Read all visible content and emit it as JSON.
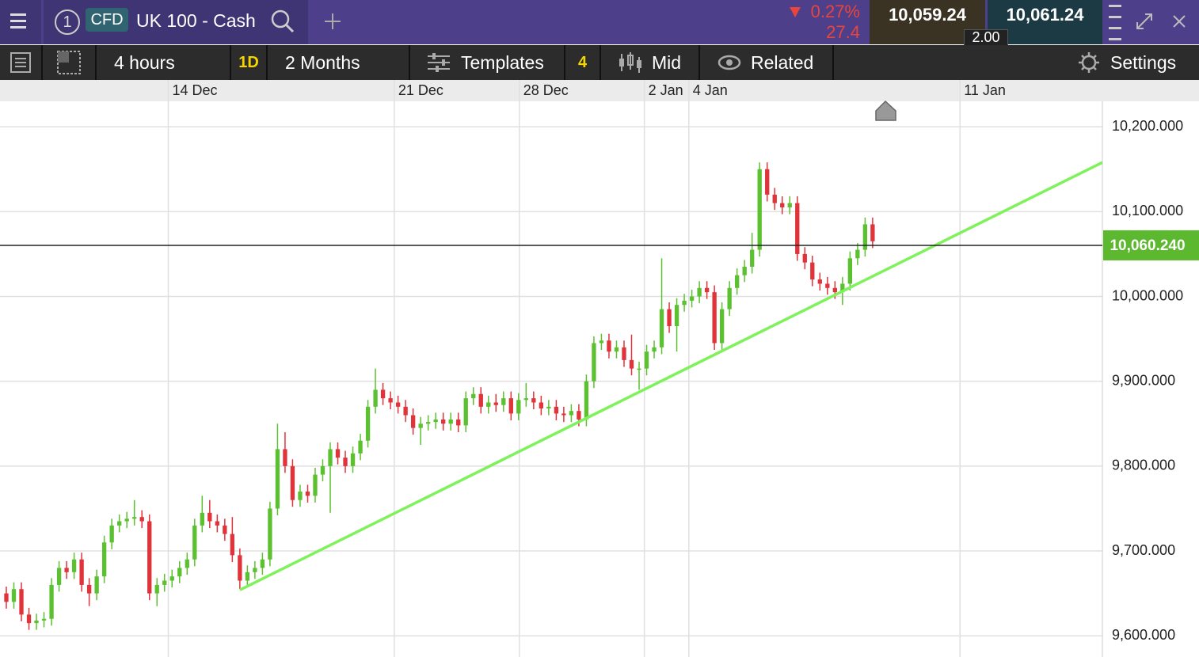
{
  "header": {
    "instrument_number": "1",
    "badge": "CFD",
    "instrument": "UK 100 - Cash",
    "change_percent": "0.27%",
    "change_points": "27.4",
    "sell_price": "10,059.24",
    "buy_price": "10,061.24",
    "spread": "2.00"
  },
  "toolbar": {
    "interval": "4 hours",
    "range_badge": "1D",
    "range": "2 Months",
    "templates": "Templates",
    "templates_count": "4",
    "price_type": "Mid",
    "related": "Related",
    "settings": "Settings"
  },
  "chart_data": {
    "type": "candlestick",
    "grid": true,
    "up_color": "#5cc130",
    "down_color": "#e0333a",
    "xlim": [
      -0.84,
      145.5
    ],
    "xticks": [
      {
        "value": 21.5,
        "label": "14 Dec"
      },
      {
        "value": 51.5,
        "label": "21 Dec"
      },
      {
        "value": 68.1,
        "label": "28 Dec"
      },
      {
        "value": 84.7,
        "label": "2 Jan"
      },
      {
        "value": 90.6,
        "label": "4 Jan"
      },
      {
        "value": 126.6,
        "label": "11 Jan"
      }
    ],
    "ylim": [
      9575,
      10230
    ],
    "yticks": [
      {
        "value": 10200,
        "label": "10,200.000"
      },
      {
        "value": 10100,
        "label": "10,100.000"
      },
      {
        "value": 10000,
        "label": "10,000.000"
      },
      {
        "value": 9900,
        "label": "9,900.000"
      },
      {
        "value": 9800,
        "label": "9,800.000"
      },
      {
        "value": 9700,
        "label": "9,700.000"
      },
      {
        "value": 9600,
        "label": "9,600.000"
      }
    ],
    "current_price": {
      "value": 10060.24,
      "label": "10,060.240",
      "color": "#5cb82e"
    },
    "trendline": {
      "x": [
        31,
        145.5
      ],
      "y": [
        9654,
        10158
      ],
      "color": "#7ef25a"
    },
    "open": [
      9650,
      9640,
      9655,
      9625,
      9615,
      9618,
      9620,
      9660,
      9680,
      9675,
      9690,
      9660,
      9650,
      9670,
      9710,
      9730,
      9735,
      9738,
      9740,
      9735,
      9650,
      9660,
      9665,
      9670,
      9680,
      9690,
      9730,
      9745,
      9735,
      9730,
      9720,
      9695,
      9665,
      9675,
      9680,
      9690,
      9750,
      9820,
      9800,
      9760,
      9770,
      9765,
      9790,
      9800,
      9820,
      9810,
      9800,
      9815,
      9830,
      9870,
      9890,
      9880,
      9875,
      9870,
      9860,
      9845,
      9850,
      9852,
      9855,
      9850,
      9855,
      9848,
      9880,
      9885,
      9870,
      9875,
      9872,
      9880,
      9862,
      9878,
      9880,
      9875,
      9868,
      9870,
      9862,
      9860,
      9865,
      9855,
      9900,
      9945,
      9948,
      9935,
      9940,
      9925,
      9915,
      9915,
      9935,
      9940,
      9985,
      9965,
      9990,
      9995,
      10000,
      10010,
      10005,
      9945,
      9985,
      10010,
      10025,
      10035,
      10055,
      10150,
      10120,
      10110,
      10105,
      10110,
      10050,
      10040,
      10020,
      10015,
      10010,
      10005,
      10015,
      10045,
      10055,
      10085
    ],
    "high": [
      9658,
      9663,
      9663,
      9633,
      9626,
      9628,
      9668,
      9688,
      9688,
      9698,
      9698,
      9668,
      9678,
      9718,
      9738,
      9743,
      9746,
      9760,
      9748,
      9743,
      9668,
      9673,
      9678,
      9688,
      9698,
      9738,
      9765,
      9760,
      9743,
      9738,
      9740,
      9703,
      9683,
      9688,
      9698,
      9758,
      9850,
      9840,
      9808,
      9778,
      9778,
      9798,
      9808,
      9828,
      9828,
      9818,
      9823,
      9838,
      9878,
      9915,
      9898,
      9888,
      9883,
      9878,
      9868,
      9858,
      9860,
      9863,
      9863,
      9863,
      9863,
      9888,
      9893,
      9893,
      9883,
      9885,
      9888,
      9888,
      9886,
      9898,
      9888,
      9883,
      9878,
      9878,
      9870,
      9873,
      9873,
      9908,
      9953,
      9956,
      9956,
      9948,
      9948,
      9955,
      9923,
      9943,
      9948,
      10045,
      9993,
      9998,
      10003,
      10008,
      10018,
      10018,
      10013,
      9993,
      10018,
      10033,
      10043,
      10075,
      10158,
      10158,
      10128,
      10118,
      10118,
      10118,
      10058,
      10048,
      10028,
      10023,
      10018,
      10023,
      10053,
      10063,
      10093,
      10093
    ],
    "low": [
      9632,
      9632,
      9617,
      9607,
      9607,
      9610,
      9612,
      9652,
      9667,
      9667,
      9652,
      9635,
      9642,
      9662,
      9702,
      9722,
      9727,
      9730,
      9727,
      9642,
      9635,
      9652,
      9657,
      9662,
      9672,
      9682,
      9722,
      9727,
      9722,
      9712,
      9687,
      9655,
      9657,
      9667,
      9672,
      9682,
      9742,
      9792,
      9752,
      9752,
      9757,
      9757,
      9782,
      9745,
      9802,
      9792,
      9792,
      9807,
      9822,
      9862,
      9872,
      9867,
      9862,
      9852,
      9837,
      9825,
      9842,
      9844,
      9842,
      9842,
      9840,
      9840,
      9872,
      9862,
      9862,
      9864,
      9864,
      9854,
      9854,
      9870,
      9867,
      9860,
      9860,
      9854,
      9852,
      9852,
      9847,
      9847,
      9892,
      9937,
      9927,
      9927,
      9917,
      9907,
      9890,
      9907,
      9927,
      9932,
      9957,
      9935,
      9982,
      9987,
      9992,
      9997,
      9937,
      9937,
      9977,
      10002,
      10017,
      10027,
      10047,
      10112,
      10102,
      10097,
      10097,
      10042,
      10032,
      10012,
      10007,
      10002,
      9997,
      9990,
      10007,
      10037,
      10047,
      10057
    ],
    "close": [
      9640,
      9655,
      9625,
      9615,
      9618,
      9620,
      9660,
      9680,
      9675,
      9690,
      9660,
      9650,
      9670,
      9710,
      9730,
      9735,
      9738,
      9740,
      9735,
      9650,
      9660,
      9665,
      9670,
      9680,
      9690,
      9730,
      9745,
      9735,
      9730,
      9720,
      9695,
      9665,
      9675,
      9680,
      9690,
      9750,
      9820,
      9800,
      9760,
      9770,
      9765,
      9790,
      9800,
      9820,
      9810,
      9800,
      9815,
      9830,
      9870,
      9890,
      9880,
      9875,
      9870,
      9860,
      9845,
      9850,
      9852,
      9855,
      9850,
      9855,
      9848,
      9880,
      9885,
      9870,
      9875,
      9872,
      9880,
      9862,
      9878,
      9880,
      9875,
      9868,
      9870,
      9862,
      9860,
      9865,
      9855,
      9900,
      9945,
      9948,
      9935,
      9940,
      9925,
      9915,
      9915,
      9935,
      9940,
      9985,
      9965,
      9990,
      9995,
      10000,
      10010,
      10005,
      9945,
      9985,
      10010,
      10025,
      10035,
      10055,
      10150,
      10120,
      10110,
      10105,
      10110,
      10050,
      10040,
      10020,
      10015,
      10010,
      10005,
      10015,
      10045,
      10055,
      10085,
      10065
    ]
  }
}
